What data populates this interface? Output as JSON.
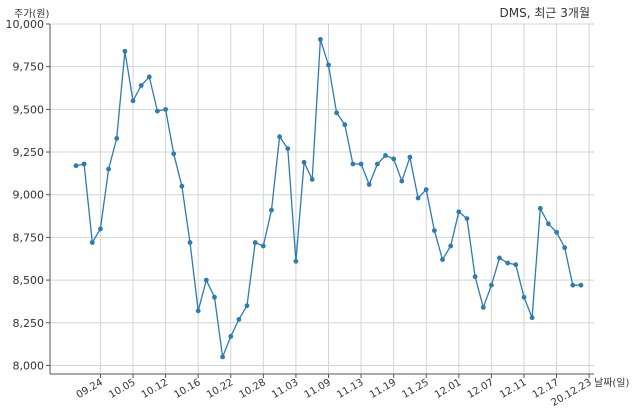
{
  "chart_data": {
    "type": "line",
    "title": "DMS, 최근 3개월",
    "ylabel": "주가(원)",
    "xlabel": "날짜(일)",
    "ylim": [
      7950,
      10000
    ],
    "yticks": [
      8000,
      8250,
      8500,
      8750,
      9000,
      9250,
      9500,
      9750,
      10000
    ],
    "ytick_labels": [
      "8,000",
      "8,250",
      "8,500",
      "8,750",
      "9,000",
      "9,250",
      "9,500",
      "9,750",
      "10,000"
    ],
    "xtick_labels": [
      "09.24",
      "10.05",
      "10.12",
      "10.16",
      "10.22",
      "10.28",
      "11.03",
      "11.09",
      "11.13",
      "11.19",
      "11.25",
      "12.01",
      "12.07",
      "12.11",
      "12.17",
      "20.12.23"
    ],
    "xtick_positions": [
      3,
      7,
      11,
      15,
      19,
      23,
      27,
      31,
      35,
      39,
      43,
      47,
      51,
      55,
      59,
      63
    ],
    "grid": true,
    "line_color": "#2e7bb0",
    "series": [
      {
        "values": [
          9170,
          9180,
          8720,
          8800,
          9150,
          9330,
          9840,
          9550,
          9640,
          9690,
          9490,
          9500,
          9240,
          9050,
          8720,
          8320,
          8500,
          8400,
          8050,
          8170,
          8270,
          8350,
          8720,
          8700,
          8910,
          9340,
          9270,
          8610,
          9190,
          9090,
          9910,
          9760,
          9480,
          9410,
          9180,
          9180,
          9060,
          9180,
          9230,
          9210,
          9080,
          9220,
          8980,
          9030,
          8790,
          8620,
          8700,
          8900,
          8860,
          8520,
          8340,
          8470,
          8630,
          8600,
          8590,
          8400,
          8280,
          8920,
          8830,
          8780,
          8690,
          8470,
          8470
        ]
      }
    ]
  }
}
